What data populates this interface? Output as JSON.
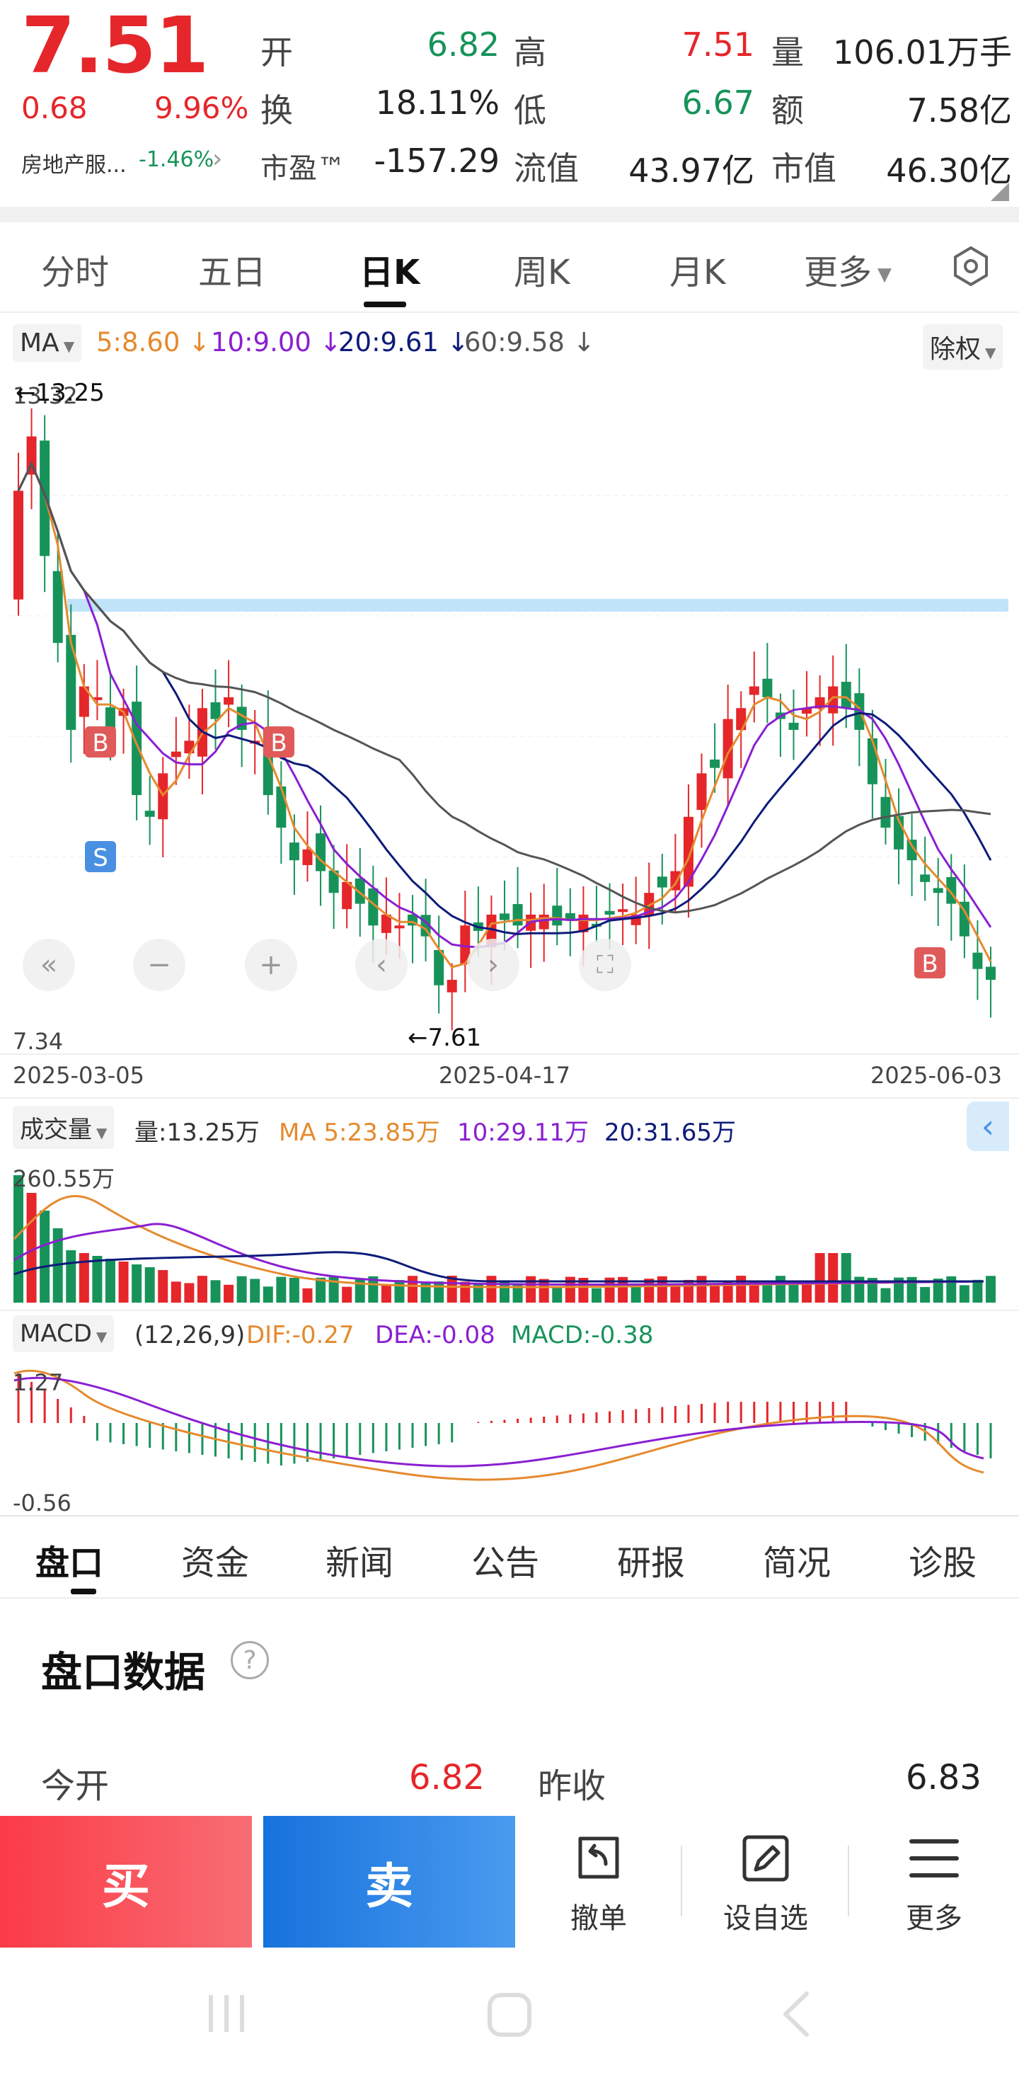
{
  "quote": {
    "price": "7.51",
    "change": "0.68",
    "change_pct": "9.96%",
    "sector": "房地产服...",
    "sector_pct": "-1.46%",
    "fields": [
      {
        "label": "开",
        "value": "6.82",
        "color": "green"
      },
      {
        "label": "高",
        "value": "7.51",
        "color": "red"
      },
      {
        "label": "量",
        "value": "106.01万手",
        "color": "dark"
      },
      {
        "label": "换",
        "value": "18.11%",
        "color": "dark"
      },
      {
        "label": "低",
        "value": "6.67",
        "color": "green"
      },
      {
        "label": "额",
        "value": "7.58亿",
        "color": "dark"
      },
      {
        "label": "市盈™",
        "value": "-157.29",
        "color": "dark"
      },
      {
        "label": "流值",
        "value": "43.97亿",
        "color": "dark"
      },
      {
        "label": "市值",
        "value": "46.30亿",
        "color": "dark"
      }
    ]
  },
  "tabs": [
    "分时",
    "五日",
    "日K",
    "周K",
    "月K",
    "更多"
  ],
  "active_tab": "日K",
  "ma_legend": {
    "selector": "MA",
    "items": [
      {
        "text": "5:8.60",
        "color": "#e58a2e"
      },
      {
        "text": "10:9.00",
        "color": "#8a1fd1"
      },
      {
        "text": "20:9.61",
        "color": "#0d1b7a"
      },
      {
        "text": "60:9.58",
        "color": "#555555"
      }
    ],
    "adjust": "除权"
  },
  "kline": {
    "high_marker": "←13.25",
    "low_marker": "←7.61",
    "y_top_label": "13.32",
    "y_bottom_label": "7.34",
    "dates": [
      "2025-03-05",
      "2025-04-17",
      "2025-06-03"
    ],
    "signals": [
      {
        "text": "B",
        "color": "#e05a5a"
      },
      {
        "text": "S",
        "color": "#4a90e2"
      },
      {
        "text": "B",
        "color": "#e05a5a"
      },
      {
        "text": "B",
        "color": "#e05a5a"
      }
    ]
  },
  "volume": {
    "selector": "成交量",
    "current": "量:13.25万",
    "ma_items": [
      {
        "text": "MA 5:23.85万",
        "color": "#e58a2e"
      },
      {
        "text": "10:29.11万",
        "color": "#8a1fd1"
      },
      {
        "text": "20:31.65万",
        "color": "#0d1b7a"
      }
    ],
    "y_top_label": "260.55万"
  },
  "macd": {
    "selector": "MACD",
    "params": "(12,26,9)",
    "items": [
      {
        "text": "DIF:-0.27",
        "color": "#e58a2e"
      },
      {
        "text": "DEA:-0.08",
        "color": "#8a1fd1"
      },
      {
        "text": "MACD:-0.38",
        "color": "#17935a"
      }
    ],
    "y_top_label": "1.27",
    "y_bottom_label": "-0.56"
  },
  "bottom_tabs": [
    "盘口",
    "资金",
    "新闻",
    "公告",
    "研报",
    "简况",
    "诊股"
  ],
  "panel": {
    "title": "盘口数据",
    "help": "?",
    "row": [
      {
        "label": "今开",
        "value": "6.82"
      },
      {
        "label": "昨收",
        "value": "6.83"
      }
    ]
  },
  "trade": {
    "buy": "买",
    "sell": "卖",
    "tools": [
      "撤单",
      "设自选",
      "更多"
    ]
  },
  "colors": {
    "up": "#e5262a",
    "down": "#17935a",
    "ma5": "#e58a2e",
    "ma10": "#8a1fd1",
    "ma20": "#0d1b7a",
    "ma60": "#555555",
    "band": "#bfe3f8"
  }
}
